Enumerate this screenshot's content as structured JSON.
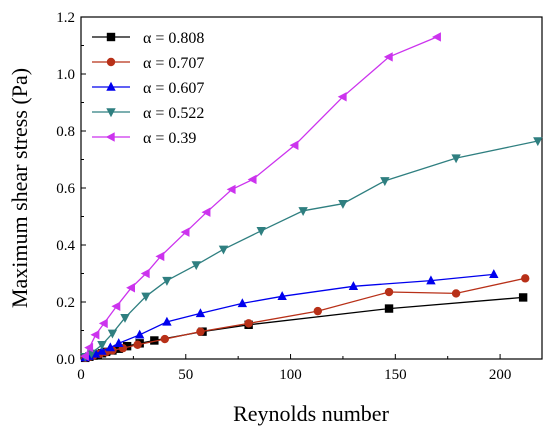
{
  "chart_data": {
    "type": "line",
    "xlabel": "Reynolds number",
    "ylabel": "Maximum shear stress (Pa)",
    "xlim": [
      0,
      220
    ],
    "ylim": [
      0,
      1.2
    ],
    "xticks": [
      0,
      50,
      100,
      150,
      200
    ],
    "xtick_labels": [
      "0",
      "50",
      "100",
      "150",
      "200"
    ],
    "yticks": [
      0,
      0.2,
      0.4,
      0.6,
      0.8,
      1.0,
      1.2
    ],
    "ytick_labels": [
      "0.0",
      "0.2",
      "0.4",
      "0.6",
      "0.8",
      "1.0",
      "1.2"
    ],
    "grid": false,
    "legend_position": "top-left",
    "series": [
      {
        "name": "α = 0.808",
        "color": "#000000",
        "marker": "square",
        "x": [
          2,
          4,
          6,
          8,
          10,
          12,
          15,
          18,
          22,
          28,
          35,
          58,
          80,
          147,
          211
        ],
        "y": [
          0.004,
          0.008,
          0.012,
          0.016,
          0.02,
          0.025,
          0.03,
          0.036,
          0.045,
          0.055,
          0.065,
          0.096,
          0.12,
          0.177,
          0.216
        ]
      },
      {
        "name": "α = 0.707",
        "color": "#b83018",
        "marker": "circle",
        "x": [
          2,
          4,
          6,
          9,
          12,
          15,
          20,
          27,
          40,
          57,
          80,
          113,
          147,
          179,
          212
        ],
        "y": [
          0.004,
          0.008,
          0.012,
          0.018,
          0.024,
          0.03,
          0.038,
          0.05,
          0.07,
          0.096,
          0.125,
          0.168,
          0.235,
          0.23,
          0.283
        ]
      },
      {
        "name": "α = 0.607",
        "color": "#0000ee",
        "marker": "triangle-up",
        "x": [
          2,
          4,
          7,
          10,
          14,
          18,
          28,
          41,
          57,
          77,
          96,
          130,
          167,
          197
        ],
        "y": [
          0.005,
          0.01,
          0.018,
          0.028,
          0.04,
          0.055,
          0.085,
          0.13,
          0.16,
          0.195,
          0.22,
          0.255,
          0.275,
          0.297
        ]
      },
      {
        "name": "α = 0.522",
        "color": "#2f7f80",
        "marker": "triangle-down",
        "x": [
          2,
          5,
          10,
          15,
          21,
          31,
          41,
          55,
          68,
          86,
          106,
          125,
          145,
          179,
          218
        ],
        "y": [
          0.008,
          0.02,
          0.05,
          0.09,
          0.145,
          0.22,
          0.275,
          0.33,
          0.385,
          0.45,
          0.52,
          0.545,
          0.625,
          0.705,
          0.765
        ]
      },
      {
        "name": "α = 0.39",
        "color": "#cc33ee",
        "marker": "triangle-left",
        "x": [
          2,
          4,
          7,
          11,
          17,
          24,
          31,
          38,
          50,
          60,
          72,
          82,
          102,
          125,
          147,
          170
        ],
        "y": [
          0.01,
          0.04,
          0.085,
          0.125,
          0.185,
          0.25,
          0.3,
          0.36,
          0.445,
          0.515,
          0.595,
          0.63,
          0.75,
          0.92,
          1.06,
          1.13
        ]
      }
    ]
  }
}
